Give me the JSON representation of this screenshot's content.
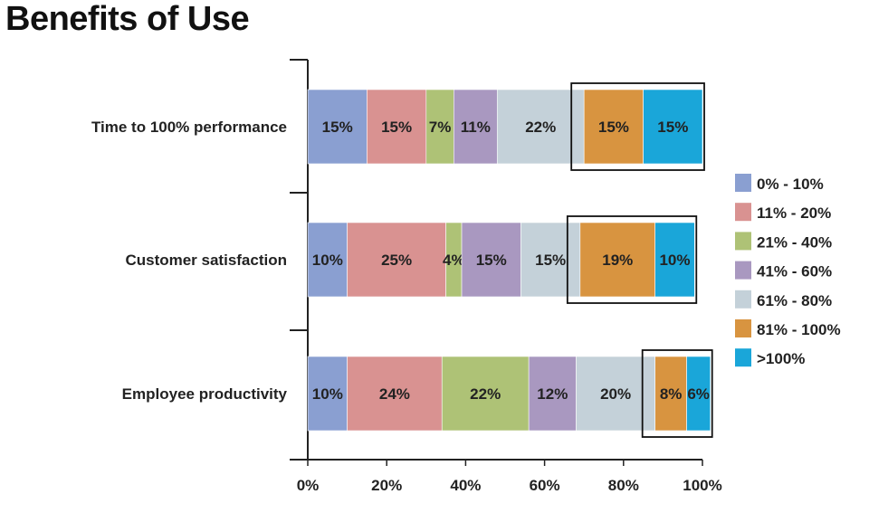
{
  "title": "Benefits of Use",
  "chart_data": {
    "type": "bar",
    "orientation": "horizontal",
    "stacked": true,
    "categories": [
      "Time to 100% performance",
      "Customer satisfaction",
      "Employee productivity"
    ],
    "series": [
      {
        "name": "0% - 10%",
        "color": "#8a9fd1",
        "values": [
          15,
          10,
          10
        ]
      },
      {
        "name": "11% - 20%",
        "color": "#d99291",
        "values": [
          15,
          25,
          24
        ]
      },
      {
        "name": "21% - 40%",
        "color": "#aec276",
        "values": [
          7,
          4,
          22
        ]
      },
      {
        "name": "41% - 60%",
        "color": "#a998c0",
        "values": [
          11,
          15,
          12
        ]
      },
      {
        "name": "61% - 80%",
        "color": "#c4d1d9",
        "values": [
          22,
          15,
          20
        ]
      },
      {
        "name": "81% - 100%",
        "color": "#d89440",
        "values": [
          15,
          19,
          8
        ]
      },
      {
        "name": ">100%",
        "color": "#1aa6d9",
        "values": [
          15,
          10,
          6
        ]
      }
    ],
    "data_labels": [
      [
        "15%",
        "15%",
        "7%",
        "11%",
        "22%",
        "15%",
        "15%"
      ],
      [
        "10%",
        "25%",
        "4%",
        "15%",
        "15%",
        "19%",
        "10%"
      ],
      [
        "10%",
        "24%",
        "22%",
        "12%",
        "20%",
        "8%",
        "6%"
      ]
    ],
    "xlim": [
      0,
      100
    ],
    "xticks": [
      "0%",
      "20%",
      "40%",
      "60%",
      "80%",
      "100%"
    ],
    "xlabel": "",
    "ylabel": "",
    "legend_position": "right",
    "grid": false,
    "highlight_boxes": "81% - 100% and >100% segments of each bar are outlined"
  }
}
